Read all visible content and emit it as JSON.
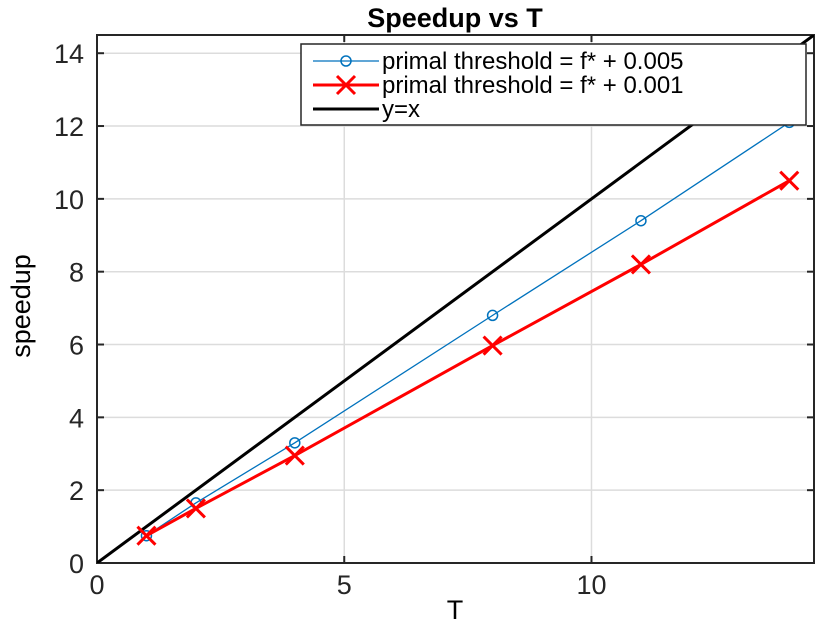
{
  "chart_data": {
    "type": "line",
    "title": "Speedup vs T",
    "xlabel": "T",
    "ylabel": "speedup",
    "xlim": [
      0,
      14.5
    ],
    "ylim": [
      0,
      14.5
    ],
    "x_ticks": [
      0,
      5,
      10
    ],
    "y_ticks": [
      0,
      2,
      4,
      6,
      8,
      10,
      12,
      14
    ],
    "grid": true,
    "legend_position": "top-right",
    "series": [
      {
        "name": "primal threshold = f* + 0.005",
        "color": "#0072BD",
        "marker": "circle",
        "x": [
          1,
          2,
          4,
          8,
          11,
          14
        ],
        "y": [
          0.75,
          1.65,
          3.3,
          6.8,
          9.4,
          12.1
        ]
      },
      {
        "name": "primal threshold = f* + 0.001",
        "color": "#FF0000",
        "marker": "x",
        "x": [
          1,
          2,
          4,
          8,
          11,
          14
        ],
        "y": [
          0.75,
          1.5,
          2.95,
          5.97,
          8.2,
          10.5
        ]
      },
      {
        "name": "y=x",
        "color": "#000000",
        "marker": "none",
        "x": [
          0,
          14.5
        ],
        "y": [
          0,
          14.5
        ]
      }
    ]
  }
}
